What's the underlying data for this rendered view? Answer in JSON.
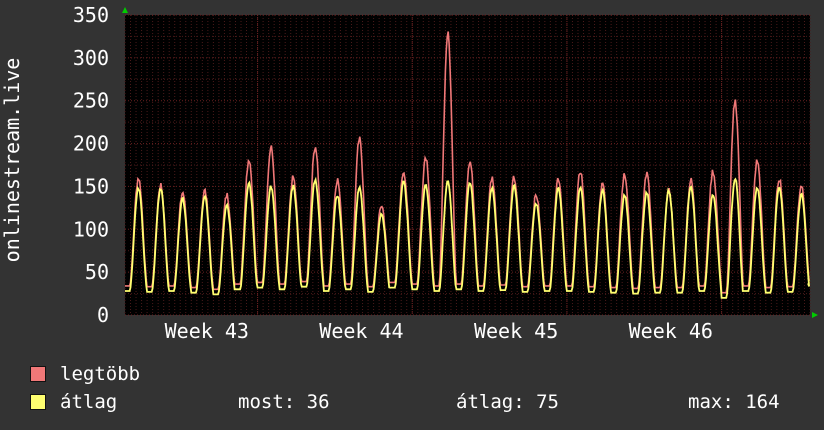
{
  "chart_data": {
    "type": "line",
    "ylabel": "onlinestream.live",
    "ylim": [
      0,
      350
    ],
    "yticks": [
      0,
      50,
      100,
      150,
      200,
      250,
      300,
      350
    ],
    "x_tick_labels": [
      "Week 43",
      "Week 44",
      "Week 45",
      "Week 46"
    ],
    "days": 31,
    "grid": true,
    "legend_placement": "bottom-left",
    "series": [
      {
        "name": "legtöbb",
        "color": "#f07878",
        "daily_peaks": [
          160,
          152,
          143,
          145,
          140,
          182,
          195,
          160,
          197,
          158,
          205,
          128,
          168,
          185,
          328,
          180,
          160,
          160,
          140,
          160,
          168,
          152,
          165,
          165,
          145,
          157,
          168,
          250,
          180,
          160,
          152
        ]
      },
      {
        "name": "átlag",
        "color": "#ffff70",
        "daily_peaks": [
          148,
          148,
          135,
          138,
          128,
          155,
          150,
          150,
          158,
          140,
          148,
          118,
          155,
          152,
          155,
          155,
          148,
          150,
          130,
          148,
          148,
          145,
          140,
          143,
          145,
          150,
          140,
          160,
          148,
          150,
          140
        ]
      }
    ],
    "baseline_min": [
      28,
      27,
      28,
      26,
      24,
      30,
      32,
      30,
      33,
      28,
      30,
      27,
      32,
      30,
      28,
      30,
      28,
      29,
      27,
      28,
      28,
      27,
      26,
      25,
      26,
      26,
      28,
      20,
      28,
      26,
      27
    ]
  },
  "legend": {
    "items": [
      {
        "label": "legtöbb",
        "color": "#f07878"
      },
      {
        "label": "átlag",
        "color": "#ffff70"
      }
    ],
    "stats": {
      "now_label": "most:",
      "now_value": "36",
      "avg_label": "átlag:",
      "avg_value": "75",
      "max_label": "max:",
      "max_value": "164"
    }
  },
  "colors": {
    "background": "#333333",
    "plot_background": "#000000",
    "grid_minor": "#4a1a1a",
    "grid_major": "#6b2020",
    "axis_arrow": "#00cc00"
  }
}
